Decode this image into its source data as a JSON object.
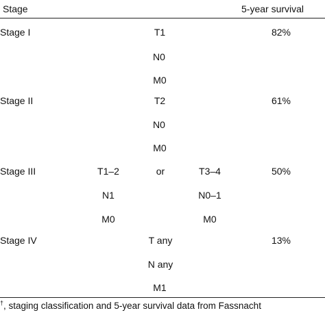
{
  "header": {
    "stage_label": "Stage",
    "survival_label": "5-year survival"
  },
  "rows": [
    {
      "stage": "Stage I",
      "survival": "82%",
      "center": [
        "T1",
        "N0",
        "M0"
      ]
    },
    {
      "stage": "Stage II",
      "survival": "61%",
      "center": [
        "T2",
        "N0",
        "M0"
      ]
    },
    {
      "stage": "Stage III",
      "survival": "50%",
      "left_col": [
        "T1–2",
        "N1",
        "M0"
      ],
      "connector": "or",
      "right_col": [
        "T3–4",
        "N0–1",
        "M0"
      ]
    },
    {
      "stage": "Stage IV",
      "survival": "13%",
      "center": [
        "T any",
        "N any",
        "M1"
      ]
    }
  ],
  "footnote": {
    "marker": "†",
    "text": ", staging classification and 5-year survival data from Fassnacht"
  }
}
